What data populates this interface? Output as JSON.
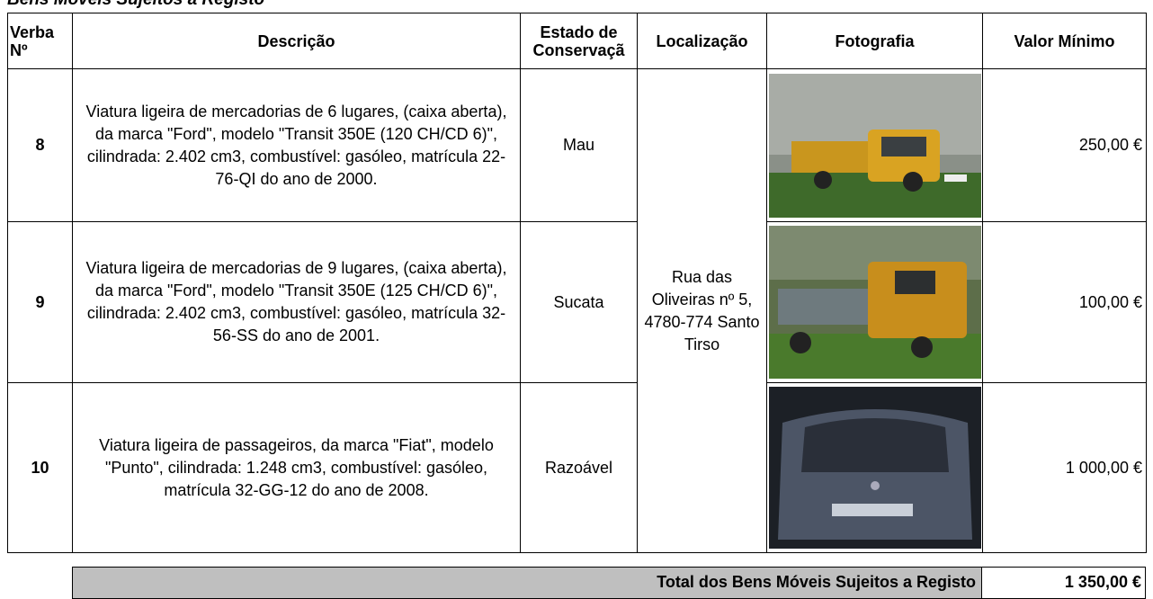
{
  "header": {
    "title": "Bens Móveis Sujeitos a Registo"
  },
  "table": {
    "columns": [
      "Verba Nº",
      "Descrição",
      "Estado de Conservaçã",
      "Localização",
      "Fotografia",
      "Valor Mínimo"
    ],
    "location": "Rua das Oliveiras nº 5, 4780-774 Santo Tirso",
    "rows": [
      [
        "8",
        "Viatura ligeira de mercadorias de 6 lugares, (caixa aberta), da marca \"Ford\", modelo \"Transit 350E (120 CH/CD 6)\", cilindrada: 2.402 cm3, combustível: gasóleo, matrícula 22-76-QI do ano de 2000.",
        "Mau",
        "250,00 €"
      ],
      [
        "9",
        "Viatura ligeira de mercadorias de 9 lugares, (caixa aberta), da marca \"Ford\", modelo \"Transit 350E (125  CH/CD 6)\", cilindrada: 2.402 cm3, combustível: gasóleo, matrícula 32-56-SS do ano de 2001.",
        "Sucata",
        "100,00 €"
      ],
      [
        "10",
        "Viatura ligeira de passageiros, da marca \"Fiat\", modelo \"Punto\", cilindrada: 1.248 cm3, combustível: gasóleo, matrícula 32-GG-12 do ano de 2008.",
        "Razoável",
        "1 000,00 €"
      ]
    ],
    "total": {
      "label": "Total dos Bens Móveis Sujeitos a Registo",
      "value": "1 350,00 €"
    }
  }
}
